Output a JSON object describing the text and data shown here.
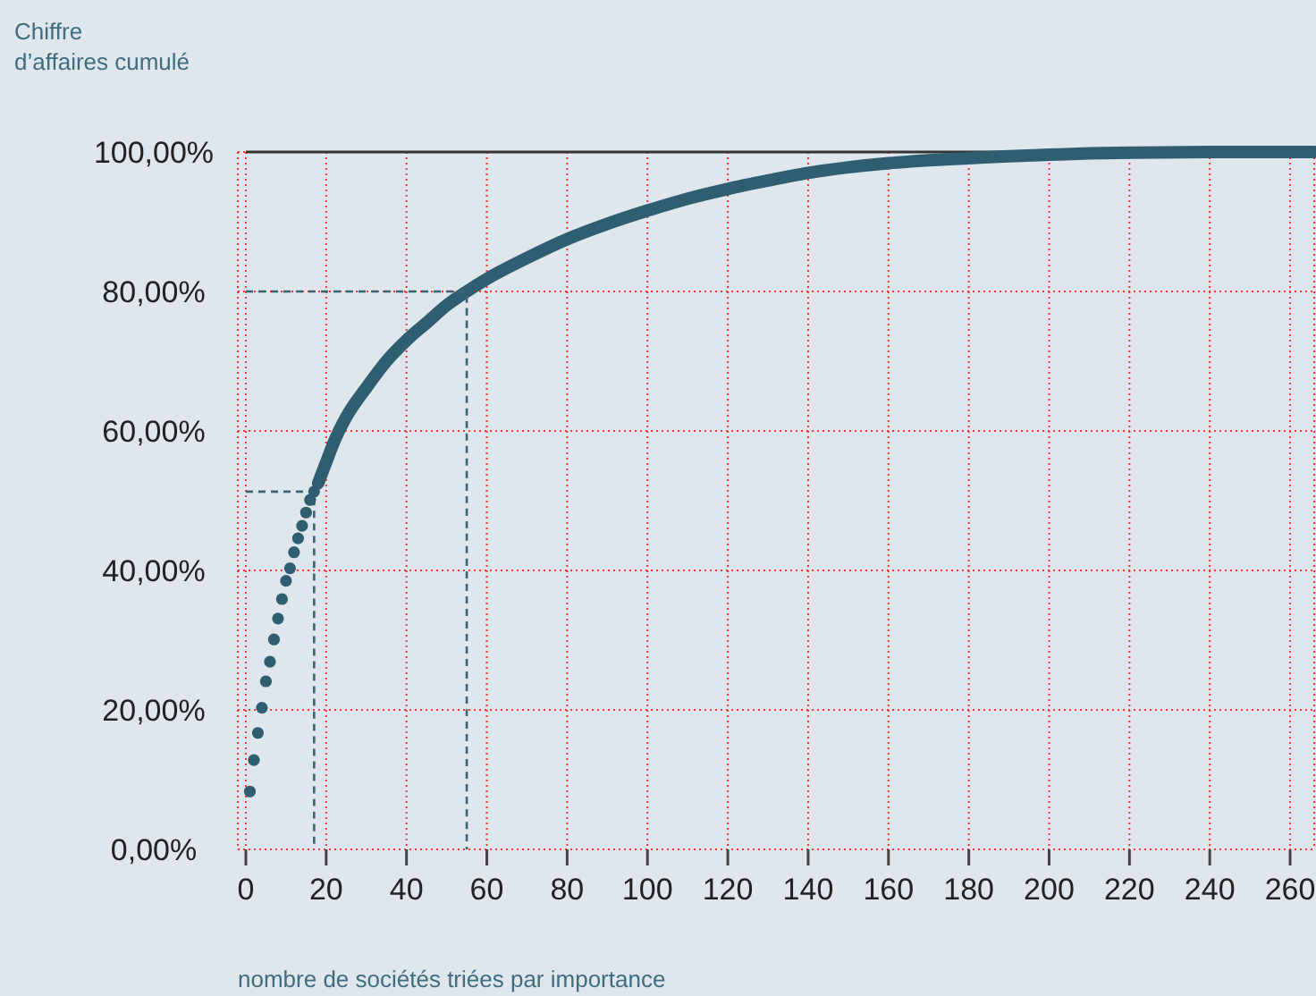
{
  "chart_data": {
    "type": "scatter",
    "ylabel": "Chiffre\nd’affaires cumulé",
    "xlabel": "nombre de sociétés triées par importance",
    "xlim": [
      -2,
      266
    ],
    "ylim": [
      0,
      100
    ],
    "xticks": [
      0,
      20,
      40,
      60,
      80,
      100,
      120,
      140,
      160,
      180,
      200,
      220,
      240,
      260
    ],
    "yticks": [
      {
        "value": 0,
        "label": "0,00%"
      },
      {
        "value": 20,
        "label": "20,00%"
      },
      {
        "value": 40,
        "label": "40,00%"
      },
      {
        "value": 60,
        "label": "60,00%"
      },
      {
        "value": 80,
        "label": "80,00%"
      },
      {
        "value": 100,
        "label": "100,00%"
      }
    ],
    "grid": true,
    "ref_lines": [
      {
        "axis": "y",
        "value": 100,
        "color": "#333333",
        "line_style": "solid"
      }
    ],
    "series": [
      {
        "marker": "circle",
        "color": "#2f5e70",
        "x": [
          1,
          2,
          3,
          4,
          5,
          6,
          7,
          8,
          9,
          10,
          11,
          12,
          13,
          14,
          15,
          16,
          17
        ],
        "values": [
          8.3,
          12.8,
          16.7,
          20.3,
          24.1,
          26.9,
          30.1,
          33.1,
          35.9,
          38.5,
          40.3,
          42.6,
          44.6,
          46.4,
          48.3,
          50.1,
          51.3
        ]
      },
      {
        "type": "line",
        "line_style": "solid",
        "color": "#2f5e70",
        "x": [
          18,
          20,
          22,
          25,
          30,
          35,
          40,
          45,
          50,
          55,
          60,
          70,
          80,
          90,
          100,
          110,
          120,
          130,
          140,
          150,
          160,
          170,
          180,
          190,
          200,
          210,
          220,
          240,
          266
        ],
        "values": [
          52.5,
          55.5,
          58.5,
          62,
          66.2,
          70,
          73,
          75.5,
          78,
          80,
          81.8,
          84.8,
          87.5,
          89.7,
          91.6,
          93.3,
          94.7,
          95.9,
          97,
          97.8,
          98.4,
          98.8,
          99.1,
          99.4,
          99.6,
          99.8,
          99.9,
          100,
          100
        ]
      },
      {
        "type": "line",
        "line_style": "dashed",
        "color": "#3a6373",
        "x": [
          0,
          17,
          17
        ],
        "values": [
          51.3,
          51.3,
          0
        ]
      },
      {
        "type": "line",
        "line_style": "dashed",
        "color": "#3a6373",
        "x": [
          0,
          55,
          55
        ],
        "values": [
          80,
          80,
          0
        ]
      }
    ]
  }
}
